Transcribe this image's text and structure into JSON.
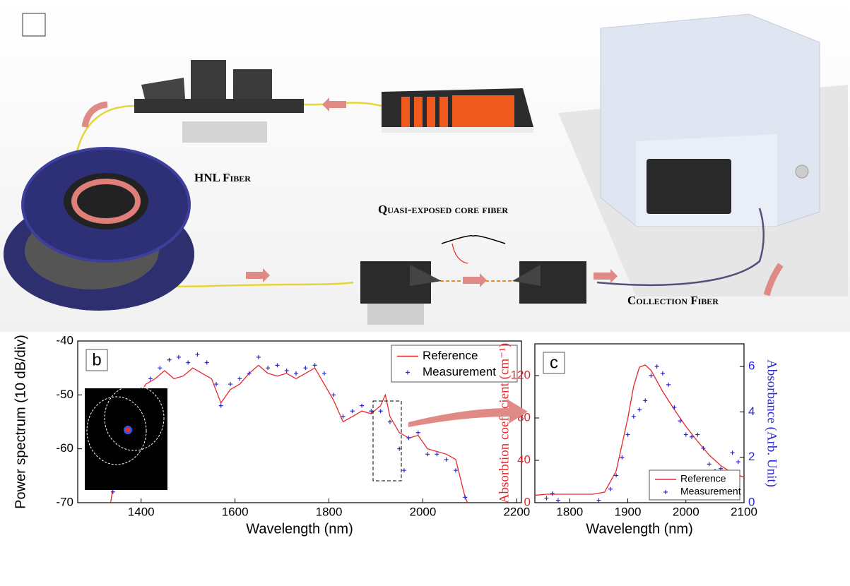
{
  "illustration": {
    "labels": [
      "HNL Fiber",
      "Quasi-exposed core fiber",
      "Collection Fiber"
    ]
  },
  "chart_data": [
    {
      "type": "line",
      "panel": "b",
      "x_label": "Wavelength (nm)",
      "y_label": "Power spectrum (10 dB/div)",
      "xlim": [
        1265,
        2210
      ],
      "xticks": [
        1400,
        1600,
        1800,
        2000,
        2200
      ],
      "ylim": [
        -70,
        -40
      ],
      "yticks": [
        -70,
        -60,
        -50,
        -40
      ],
      "legend": "upper right",
      "series": [
        {
          "name": "Reference",
          "color": "#e8262a",
          "mark": "line",
          "x": [
            1335,
            1350,
            1370,
            1390,
            1410,
            1430,
            1450,
            1470,
            1490,
            1510,
            1530,
            1550,
            1570,
            1590,
            1610,
            1630,
            1650,
            1670,
            1690,
            1710,
            1730,
            1750,
            1770,
            1790,
            1810,
            1830,
            1850,
            1870,
            1890,
            1910,
            1920,
            1930,
            1950,
            1970,
            1990,
            2010,
            2030,
            2050,
            2070,
            2090,
            2095
          ],
          "values": [
            -70,
            -62,
            -56,
            -51,
            -48,
            -47,
            -45.5,
            -47,
            -46.5,
            -45,
            -46,
            -47,
            -51.5,
            -49,
            -48,
            -46,
            -44.5,
            -46,
            -46.5,
            -46,
            -47,
            -46,
            -45,
            -48,
            -51,
            -55,
            -54,
            -53,
            -53.5,
            -52,
            -50,
            -54,
            -57,
            -58,
            -57.5,
            -60,
            -60.5,
            -61,
            -62,
            -69,
            -70
          ]
        },
        {
          "name": "Measurement",
          "color": "#2a2ad0",
          "mark": "plus",
          "x": [
            1340,
            1360,
            1380,
            1400,
            1420,
            1440,
            1460,
            1480,
            1500,
            1520,
            1540,
            1560,
            1570,
            1590,
            1610,
            1630,
            1650,
            1670,
            1690,
            1710,
            1730,
            1750,
            1770,
            1790,
            1810,
            1830,
            1850,
            1870,
            1890,
            1910,
            1930,
            1950,
            1960,
            1970,
            1990,
            2010,
            2030,
            2050,
            2070,
            2090
          ],
          "values": [
            -68,
            -58,
            -54,
            -49,
            -47,
            -45,
            -43.5,
            -43,
            -44,
            -42.5,
            -44,
            -48,
            -52,
            -48,
            -47,
            -46,
            -43,
            -45,
            -44.5,
            -45.5,
            -46,
            -45,
            -44.5,
            -46,
            -50,
            -54,
            -53,
            -52,
            -53,
            -53,
            -55,
            -60,
            -64,
            -58,
            -57,
            -61,
            -61,
            -62,
            -64,
            -69
          ]
        }
      ]
    },
    {
      "type": "line",
      "panel": "c",
      "x_label": "Wavelength (nm)",
      "y_label": "Absorbtion coefficient (cm⁻¹)",
      "y2_label": "Absorbance (Arb. Unit)",
      "xlim": [
        1740,
        2100
      ],
      "xticks": [
        1800,
        1900,
        2000,
        2100
      ],
      "ylim": [
        0,
        150
      ],
      "yticks": [
        0,
        40,
        80,
        120
      ],
      "y2lim": [
        0,
        7
      ],
      "y2ticks": [
        0,
        2,
        4,
        6
      ],
      "legend": "lower right",
      "series": [
        {
          "name": "Reference",
          "color": "#e8262a",
          "mark": "line",
          "x": [
            1740,
            1760,
            1800,
            1840,
            1860,
            1880,
            1900,
            1910,
            1920,
            1930,
            1940,
            1960,
            1980,
            2000,
            2020,
            2040,
            2060,
            2080,
            2100
          ],
          "values": [
            7,
            8,
            8,
            8,
            10,
            30,
            80,
            110,
            128,
            130,
            125,
            105,
            88,
            72,
            58,
            45,
            35,
            28,
            24
          ]
        },
        {
          "name": "Measurement",
          "color": "#2a2ad0",
          "mark": "plus",
          "axis": "y2",
          "x": [
            1760,
            1770,
            1780,
            1850,
            1870,
            1880,
            1890,
            1900,
            1910,
            1920,
            1930,
            1940,
            1950,
            1960,
            1970,
            1980,
            1990,
            2000,
            2010,
            2020,
            2030,
            2040,
            2050,
            2060,
            2070,
            2080,
            2090
          ],
          "values": [
            0.2,
            0.4,
            0.1,
            0.1,
            0.6,
            1.2,
            2.0,
            3.0,
            3.8,
            4.1,
            4.5,
            5.6,
            6.0,
            5.7,
            5.2,
            4.2,
            3.6,
            3.0,
            2.9,
            3.0,
            2.4,
            1.7,
            1.4,
            1.5,
            1.3,
            2.2,
            1.8
          ]
        }
      ]
    }
  ]
}
